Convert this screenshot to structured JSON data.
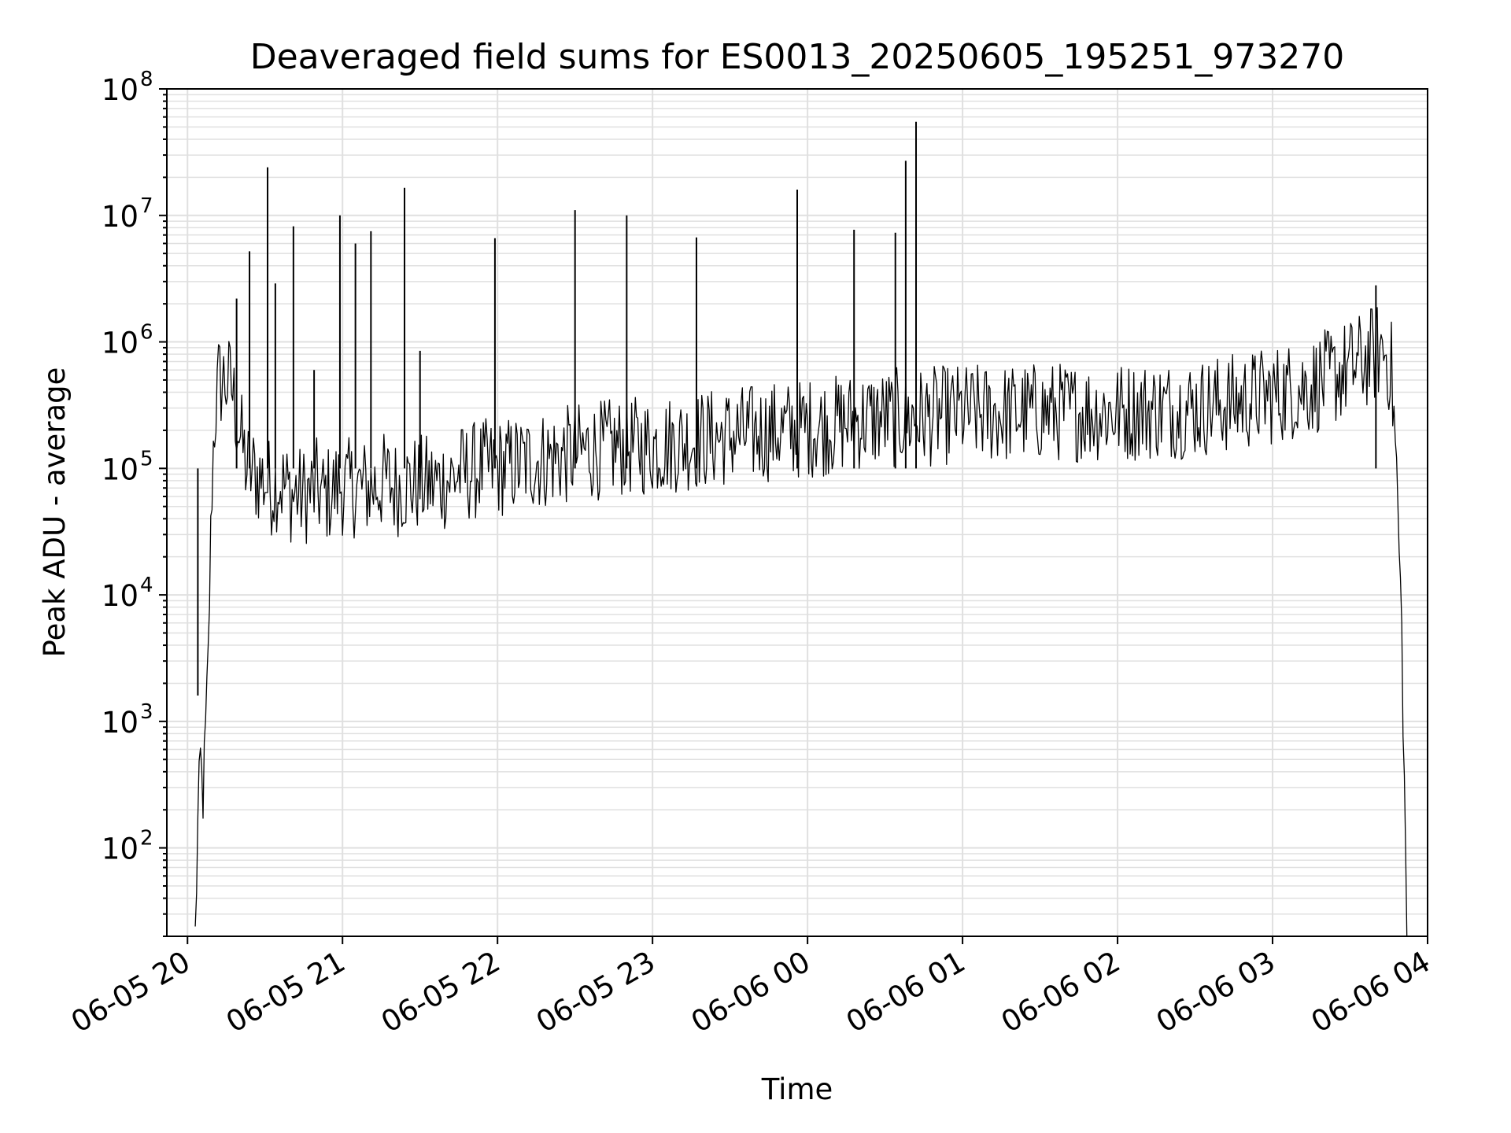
{
  "chart_data": {
    "type": "line",
    "title": "Deaveraged field sums for ES0013_20250605_195251_973270",
    "xlabel": "Time",
    "ylabel": "Peak ADU - average",
    "y_scale": "log",
    "ylim": [
      20,
      100000000
    ],
    "xlim": [
      "2025-06-05 19:52",
      "2025-06-06 04:00"
    ],
    "grid": true,
    "x_ticks": [
      "06-05 20",
      "06-05 21",
      "06-05 22",
      "06-05 23",
      "06-06 00",
      "06-06 01",
      "06-06 02",
      "06-06 03",
      "06-06 04"
    ],
    "y_ticks": [
      {
        "base": "10",
        "exp": "2"
      },
      {
        "base": "10",
        "exp": "3"
      },
      {
        "base": "10",
        "exp": "4"
      },
      {
        "base": "10",
        "exp": "5"
      },
      {
        "base": "10",
        "exp": "6"
      },
      {
        "base": "10",
        "exp": "7"
      },
      {
        "base": "10",
        "exp": "8"
      }
    ],
    "line_color": "#000000",
    "grid_color": "#e0e0e0",
    "series": [
      {
        "x": [
          "2025-06-05 20:03",
          "2025-06-05 20:04",
          "2025-06-05 20:05",
          "2025-06-05 20:06",
          "2025-06-05 20:07",
          "2025-06-05 20:08",
          "2025-06-05 20:09",
          "2025-06-05 20:10",
          "2025-06-05 20:12",
          "2025-06-05 20:14",
          "2025-06-05 20:17",
          "2025-06-05 20:20",
          "2025-06-05 20:23",
          "2025-06-05 20:26",
          "2025-06-05 20:30",
          "2025-06-05 20:32",
          "2025-06-05 20:35",
          "2025-06-05 20:38",
          "2025-06-05 20:41",
          "2025-06-05 20:42",
          "2025-06-05 20:44",
          "2025-06-05 20:48",
          "2025-06-05 20:50",
          "2025-06-05 20:52",
          "2025-06-05 20:56",
          "2025-06-05 20:59",
          "2025-06-05 21:02",
          "2025-06-05 21:06",
          "2025-06-05 21:10",
          "2025-06-05 21:14",
          "2025-06-05 21:17",
          "2025-06-05 21:20",
          "2025-06-05 21:25",
          "2025-06-05 21:30",
          "2025-06-05 21:35",
          "2025-06-05 21:40",
          "2025-06-05 21:45",
          "2025-06-05 21:50",
          "2025-06-05 21:55",
          "2025-06-05 22:00",
          "2025-06-05 22:10",
          "2025-06-05 22:20",
          "2025-06-05 22:30",
          "2025-06-05 22:35",
          "2025-06-05 22:40",
          "2025-06-05 22:50",
          "2025-06-05 23:00",
          "2025-06-05 23:10",
          "2025-06-05 23:20",
          "2025-06-05 23:30",
          "2025-06-05 23:40",
          "2025-06-05 23:50",
          "2025-06-05 23:55",
          "2025-06-06 00:00",
          "2025-06-06 00:10",
          "2025-06-06 00:15",
          "2025-06-06 00:20",
          "2025-06-06 00:30",
          "2025-06-06 00:35",
          "2025-06-06 00:40",
          "2025-06-06 00:50",
          "2025-06-06 01:00",
          "2025-06-06 01:15",
          "2025-06-06 01:30",
          "2025-06-06 01:45",
          "2025-06-06 02:00",
          "2025-06-06 02:15",
          "2025-06-06 02:30",
          "2025-06-06 02:45",
          "2025-06-06 03:00",
          "2025-06-06 03:15",
          "2025-06-06 03:25",
          "2025-06-06 03:35",
          "2025-06-06 03:40",
          "2025-06-06 03:43",
          "2025-06-06 03:46",
          "2025-06-06 03:48",
          "2025-06-06 03:50",
          "2025-06-06 03:52"
        ],
        "y": [
          20,
          150,
          500,
          250,
          800,
          3000,
          30000,
          150000,
          480000,
          500000,
          450000,
          200000,
          100000,
          90000,
          80000,
          70000,
          80000,
          70000,
          60000,
          65000,
          60000,
          65000,
          70000,
          60000,
          65000,
          75000,
          70000,
          70000,
          70000,
          75000,
          80000,
          70000,
          75000,
          75000,
          75000,
          80000,
          90000,
          95000,
          100000,
          100000,
          110000,
          120000,
          130000,
          140000,
          140000,
          150000,
          150000,
          160000,
          170000,
          180000,
          190000,
          200000,
          200000,
          210000,
          220000,
          230000,
          240000,
          250000,
          250000,
          250000,
          260000,
          270000,
          270000,
          280000,
          280000,
          280000,
          290000,
          300000,
          330000,
          380000,
          450000,
          550000,
          700000,
          820000,
          900000,
          600000,
          100000,
          5000,
          20
        ]
      }
    ],
    "spikes": [
      {
        "x": "2025-06-05 20:04",
        "y": 1600
      },
      {
        "x": "2025-06-05 20:19",
        "y": 2200000
      },
      {
        "x": "2025-06-05 20:24",
        "y": 5200000
      },
      {
        "x": "2025-06-05 20:31",
        "y": 24000000
      },
      {
        "x": "2025-06-05 20:34",
        "y": 2900000
      },
      {
        "x": "2025-06-05 20:41",
        "y": 8200000
      },
      {
        "x": "2025-06-05 20:49",
        "y": 600000
      },
      {
        "x": "2025-06-05 20:59",
        "y": 10000000
      },
      {
        "x": "2025-06-05 21:05",
        "y": 6000000
      },
      {
        "x": "2025-06-05 21:11",
        "y": 7500000
      },
      {
        "x": "2025-06-05 21:24",
        "y": 16500000
      },
      {
        "x": "2025-06-05 21:30",
        "y": 850000
      },
      {
        "x": "2025-06-05 21:59",
        "y": 6600000
      },
      {
        "x": "2025-06-05 22:30",
        "y": 11000000
      },
      {
        "x": "2025-06-05 22:50",
        "y": 10000000
      },
      {
        "x": "2025-06-05 23:17",
        "y": 6700000
      },
      {
        "x": "2025-06-05 23:56",
        "y": 16000000
      },
      {
        "x": "2025-06-06 00:18",
        "y": 7700000
      },
      {
        "x": "2025-06-06 00:34",
        "y": 7300000
      },
      {
        "x": "2025-06-06 00:38",
        "y": 27000000
      },
      {
        "x": "2025-06-06 00:42",
        "y": 55000000
      },
      {
        "x": "2025-06-06 03:40",
        "y": 2800000
      }
    ]
  }
}
